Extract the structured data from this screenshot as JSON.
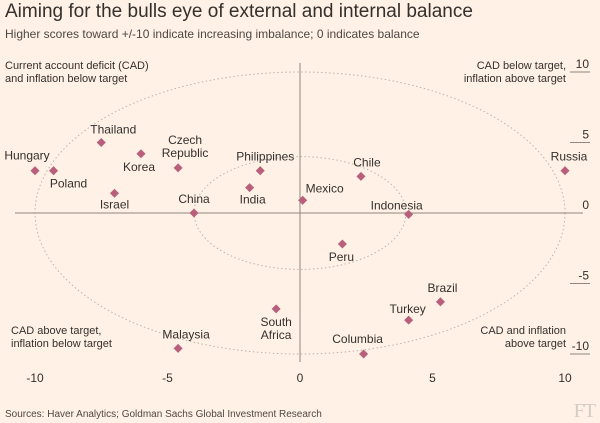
{
  "chart_data": {
    "type": "scatter",
    "title": "Aiming for the bulls eye of external and internal balance",
    "subtitle": "Higher scores toward +/-10 indicate increasing imbalance; 0 indicates balance",
    "xlim": [
      -10,
      10
    ],
    "ylim": [
      -10,
      10
    ],
    "x_ticks": [
      "-10",
      "-5",
      "0",
      "5",
      "10"
    ],
    "y_ticks": [
      "10",
      "5",
      "0",
      "-5",
      "-10"
    ],
    "circles": [
      4,
      10
    ],
    "quadrants": {
      "top_left": [
        "Current account deficit (CAD)",
        "and inflation below target"
      ],
      "top_right": [
        "CAD below target,",
        "inflation above target"
      ],
      "bottom_left": [
        "CAD above target,",
        "inflation below target"
      ],
      "bottom_right": [
        "CAD and inflation",
        "above target"
      ]
    },
    "points": [
      {
        "name": "Hungary",
        "x": -10,
        "y": 3.0
      },
      {
        "name": "Poland",
        "x": -9.3,
        "y": 3.0
      },
      {
        "name": "Thailand",
        "x": -7.5,
        "y": 5.0
      },
      {
        "name": "Czech Republic",
        "x": -4.6,
        "y": 3.2
      },
      {
        "name": "Korea",
        "x": -6.0,
        "y": 4.2
      },
      {
        "name": "Israel",
        "x": -7.0,
        "y": 1.4
      },
      {
        "name": "China",
        "x": -4.0,
        "y": 0.0
      },
      {
        "name": "Philippines",
        "x": -1.5,
        "y": 3.0
      },
      {
        "name": "India",
        "x": -1.9,
        "y": 1.8
      },
      {
        "name": "Mexico",
        "x": 0.1,
        "y": 0.9
      },
      {
        "name": "Chile",
        "x": 2.3,
        "y": 2.6
      },
      {
        "name": "Indonesia",
        "x": 4.1,
        "y": -0.1
      },
      {
        "name": "Peru",
        "x": 1.6,
        "y": -2.2
      },
      {
        "name": "Russia",
        "x": 10.0,
        "y": 3.0
      },
      {
        "name": "Brazil",
        "x": 5.3,
        "y": -6.3
      },
      {
        "name": "Turkey",
        "x": 4.1,
        "y": -7.6
      },
      {
        "name": "Columbia",
        "x": 2.4,
        "y": -10.0
      },
      {
        "name": "South Africa",
        "x": -0.9,
        "y": -6.8
      },
      {
        "name": "Malaysia",
        "x": -4.6,
        "y": -9.6
      }
    ],
    "colors": {
      "marker": "#b85f7c",
      "axis": "#8f8780",
      "circle": "#bdb5ad",
      "text": "#33302e"
    }
  },
  "source": "Sources: Haver Analytics; Goldman Sachs Global Investment Research",
  "logo": "FT"
}
